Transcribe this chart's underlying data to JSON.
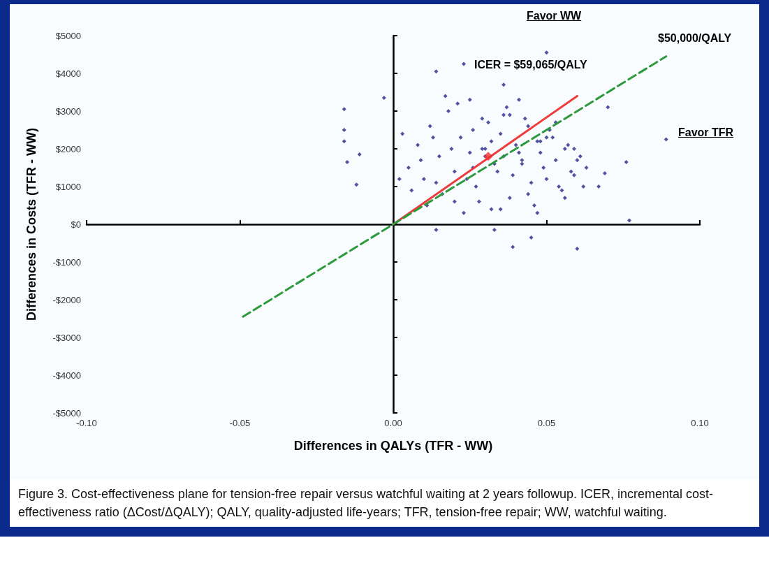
{
  "chart_data": {
    "type": "scatter",
    "xlabel": "Differences in QALYs (TFR - WW)",
    "ylabel": "Differences in Costs (TFR - WW)",
    "xlim": [
      -0.1,
      0.1
    ],
    "ylim": [
      -5000,
      5000
    ],
    "xticks": [
      {
        "value": -0.1,
        "label": "-0.10"
      },
      {
        "value": -0.05,
        "label": "-0.05"
      },
      {
        "value": 0,
        "label": "0.00"
      },
      {
        "value": 0.05,
        "label": "0.05"
      },
      {
        "value": 0.1,
        "label": "0.10"
      }
    ],
    "yticks": [
      {
        "value": -5000,
        "label": "-$5000"
      },
      {
        "value": -4000,
        "label": "-$4000"
      },
      {
        "value": -3000,
        "label": "-$3000"
      },
      {
        "value": -2000,
        "label": "-$2000"
      },
      {
        "value": -1000,
        "label": "-$1000"
      },
      {
        "value": 0,
        "label": "$0"
      },
      {
        "value": 1000,
        "label": "$1000"
      },
      {
        "value": 2000,
        "label": "$2000"
      },
      {
        "value": 3000,
        "label": "$3000"
      },
      {
        "value": 4000,
        "label": "$4000"
      },
      {
        "value": 5000,
        "label": "$5000"
      }
    ],
    "marker": "diamond",
    "series": [
      {
        "color": "#27288a",
        "x": [
          0.05,
          0.014,
          0.023,
          0.036,
          -0.016,
          -0.016,
          -0.016,
          -0.015,
          -0.012,
          -0.003,
          -0.011,
          0.039,
          0.06,
          0.045,
          0.014,
          0.033,
          0.07,
          0.069,
          0.067,
          0.089,
          0.076,
          0.077,
          0.005,
          0.008,
          0.01,
          0.012,
          0.015,
          0.018,
          0.02,
          0.022,
          0.025,
          0.027,
          0.029,
          0.031,
          0.033,
          0.035,
          0.037,
          0.039,
          0.041,
          0.043,
          0.045,
          0.047,
          0.049,
          0.051,
          0.053,
          0.055,
          0.057,
          0.059,
          0.061,
          0.063,
          0.006,
          0.009,
          0.013,
          0.016,
          0.019,
          0.021,
          0.024,
          0.026,
          0.028,
          0.03,
          0.032,
          0.034,
          0.036,
          0.038,
          0.04,
          0.042,
          0.044,
          0.046,
          0.048,
          0.05,
          0.052,
          0.054,
          0.056,
          0.058,
          0.06,
          0.003,
          0.011,
          0.017,
          0.023,
          0.029,
          0.035,
          0.041,
          0.047,
          0.053,
          0.059,
          0.014,
          0.02,
          0.026,
          0.032,
          0.038,
          0.044,
          0.05,
          0.056,
          0.002,
          0.062,
          0.025,
          0.03,
          0.036,
          0.042,
          0.048
        ],
        "values": [
          4550,
          4050,
          4250,
          3700,
          3050,
          2500,
          2200,
          1650,
          1050,
          3350,
          1850,
          -600,
          -650,
          -350,
          -150,
          -150,
          3100,
          1350,
          1000,
          2250,
          1650,
          100,
          1500,
          2100,
          1200,
          2600,
          1800,
          3000,
          1400,
          2300,
          3300,
          1000,
          2000,
          2700,
          1600,
          2400,
          3100,
          1300,
          1900,
          2800,
          1100,
          2200,
          1500,
          2500,
          1700,
          900,
          2100,
          1300,
          1800,
          1500,
          900,
          1700,
          2300,
          800,
          2000,
          3200,
          1200,
          2500,
          600,
          1800,
          2200,
          1400,
          2900,
          700,
          2100,
          1600,
          2600,
          500,
          1900,
          1200,
          2300,
          1000,
          2000,
          1400,
          1700,
          2400,
          500,
          3400,
          300,
          2800,
          400,
          3300,
          300,
          2700,
          2000,
          1100,
          600,
          1500,
          400,
          2900,
          800,
          2300,
          700,
          1200,
          1000,
          1900,
          2000,
          1800,
          1700,
          2200
        ]
      },
      {
        "type": "line",
        "color": "#ee3b3b",
        "marker": "none",
        "x": [
          0,
          0.06
        ],
        "values": [
          0,
          3400
        ]
      },
      {
        "type": "line",
        "color": "#2d9a3c",
        "marker": "none",
        "line_style": "dashed",
        "x": [
          -0.049,
          0.089
        ],
        "values": [
          -2450,
          4450
        ]
      },
      {
        "color": "#f03030",
        "x": [
          0.031
        ],
        "values": [
          1800
        ]
      }
    ],
    "annotations": [
      "Favor WW",
      "Favor TFR",
      "$50,000/QALY",
      "ICER = $59,065/QALY",
      "Figure 3. Cost-effectiveness plane for tension-free repair versus watchful waiting at 2 years followup. ICER, incremental cost-effectiveness ratio (ΔCost/ΔQALY); QALY, quality-adjusted life-years; TFR, tension-free repair; WW, watchful waiting."
    ]
  }
}
